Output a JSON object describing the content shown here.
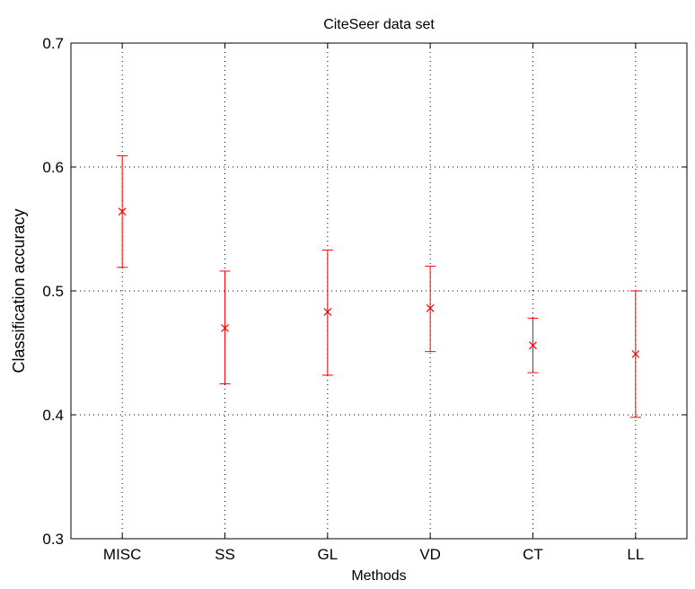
{
  "chart_data": {
    "type": "scatter",
    "subtype": "errorbar",
    "title": "CiteSeer data set",
    "xlabel": "Methods",
    "ylabel": "Classification accuracy",
    "categories": [
      "MISC",
      "SS",
      "GL",
      "VD",
      "CT",
      "LL"
    ],
    "ylim": [
      0.3,
      0.7
    ],
    "yticks": [
      "0.3",
      "0.4",
      "0.5",
      "0.6",
      "0.7"
    ],
    "grid": true,
    "series": [
      {
        "color": "#ff0000",
        "marker": "x",
        "mean": [
          0.564,
          0.47,
          0.483,
          0.486,
          0.456,
          0.449
        ],
        "lower": [
          0.519,
          0.425,
          0.432,
          0.451,
          0.434,
          0.398
        ],
        "upper": [
          0.609,
          0.516,
          0.533,
          0.52,
          0.478,
          0.5
        ]
      }
    ]
  }
}
